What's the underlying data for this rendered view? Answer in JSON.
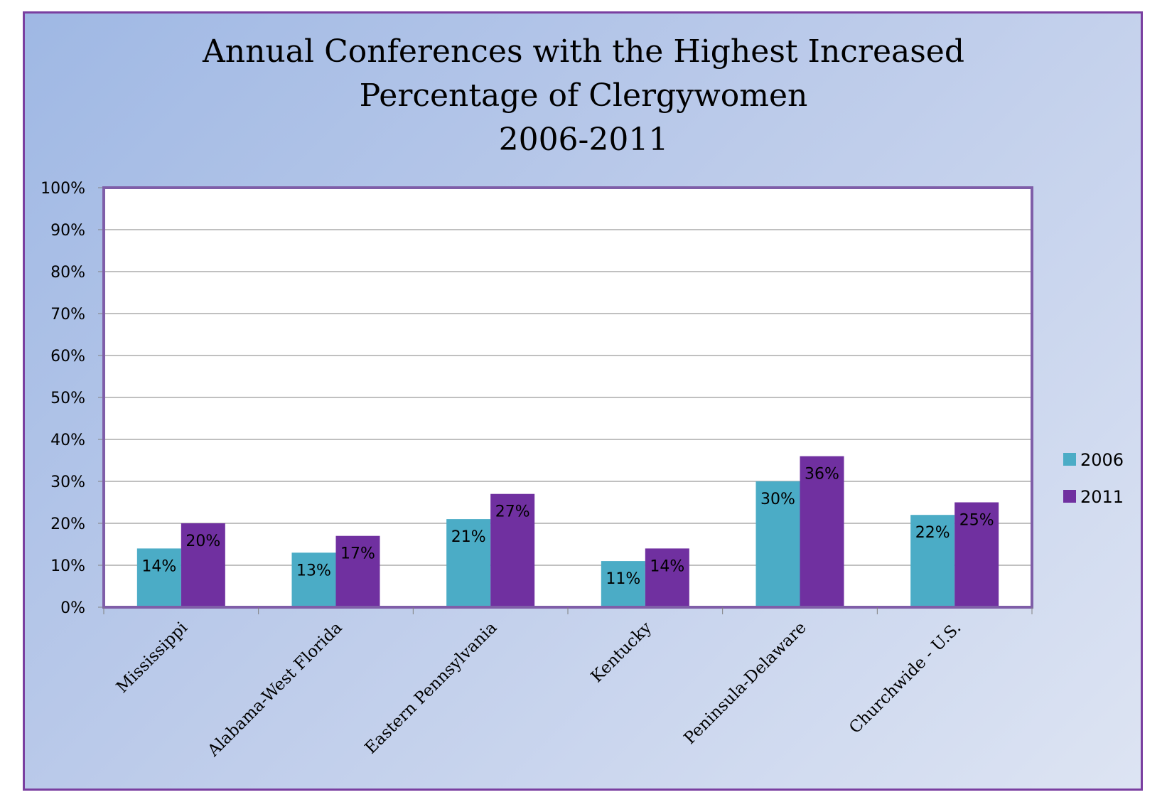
{
  "chart_data": {
    "type": "bar",
    "title": [
      "Annual Conferences  with the Highest Increased",
      "Percentage of Clergywomen",
      "2006-2011"
    ],
    "categories": [
      "Mississippi",
      "Alabama-West Florida",
      "Eastern Pennsylvania",
      "Kentucky",
      "Peninsula-Delaware",
      "Churchwide - U.S."
    ],
    "series": [
      {
        "name": "2006",
        "values": [
          14,
          13,
          21,
          11,
          30,
          22
        ],
        "labels": [
          "14%",
          "13%",
          "21%",
          "11%",
          "30%",
          "22%"
        ],
        "color": "#4bacc6"
      },
      {
        "name": "2011",
        "values": [
          20,
          17,
          27,
          14,
          36,
          25
        ],
        "labels": [
          "20%",
          "17%",
          "27%",
          "14%",
          "36%",
          "25%"
        ],
        "color": "#7030a0"
      }
    ],
    "ylim": [
      0,
      100
    ],
    "yticks": [
      "0%",
      "10%",
      "20%",
      "30%",
      "40%",
      "50%",
      "60%",
      "70%",
      "80%",
      "90%",
      "100%"
    ],
    "xlabel": "",
    "ylabel": "",
    "grid": true,
    "legend_position": "right",
    "colors": {
      "frame_border": "#7a3fa0",
      "plot_border": "#7f5ea8",
      "grid": "#808080"
    }
  }
}
